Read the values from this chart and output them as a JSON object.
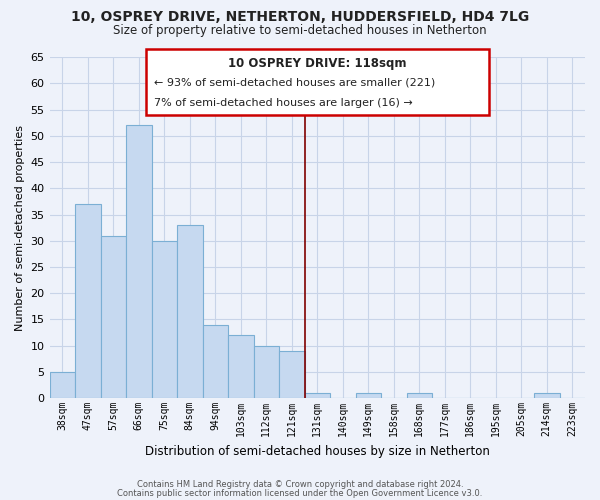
{
  "title": "10, OSPREY DRIVE, NETHERTON, HUDDERSFIELD, HD4 7LG",
  "subtitle": "Size of property relative to semi-detached houses in Netherton",
  "xlabel": "Distribution of semi-detached houses by size in Netherton",
  "ylabel": "Number of semi-detached properties",
  "categories": [
    "38sqm",
    "47sqm",
    "57sqm",
    "66sqm",
    "75sqm",
    "84sqm",
    "94sqm",
    "103sqm",
    "112sqm",
    "121sqm",
    "131sqm",
    "140sqm",
    "149sqm",
    "158sqm",
    "168sqm",
    "177sqm",
    "186sqm",
    "195sqm",
    "205sqm",
    "214sqm",
    "223sqm"
  ],
  "values": [
    5,
    37,
    31,
    52,
    30,
    33,
    14,
    12,
    10,
    9,
    1,
    0,
    1,
    0,
    1,
    0,
    0,
    0,
    0,
    1,
    0
  ],
  "bar_color": "#c6d9f0",
  "bar_edge_color": "#7bafd4",
  "vline_x_index": 9,
  "vline_color": "#800000",
  "ylim": [
    0,
    65
  ],
  "yticks": [
    0,
    5,
    10,
    15,
    20,
    25,
    30,
    35,
    40,
    45,
    50,
    55,
    60,
    65
  ],
  "annotation_title": "10 OSPREY DRIVE: 118sqm",
  "annotation_line1": "← 93% of semi-detached houses are smaller (221)",
  "annotation_line2": "7% of semi-detached houses are larger (16) →",
  "annotation_box_color": "#ffffff",
  "annotation_box_edge": "#cc0000",
  "background_color": "#eef2fa",
  "grid_color": "#c8d4e8",
  "footer1": "Contains HM Land Registry data © Crown copyright and database right 2024.",
  "footer2": "Contains public sector information licensed under the Open Government Licence v3.0."
}
